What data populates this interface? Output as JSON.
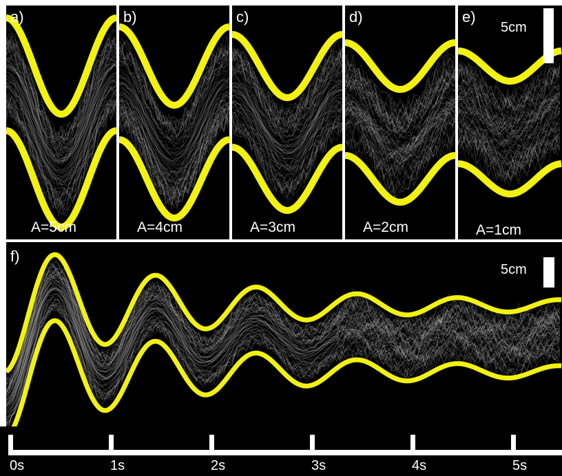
{
  "panels": [
    {
      "label": "a)",
      "amp_label": "A=5cm",
      "amplitude": 5
    },
    {
      "label": "b)",
      "amp_label": "A=4cm",
      "amplitude": 4
    },
    {
      "label": "c)",
      "amp_label": "A=3cm",
      "amplitude": 3
    },
    {
      "label": "d)",
      "amp_label": "A=2cm",
      "amplitude": 2
    },
    {
      "label": "e)",
      "amp_label": "A=1cm",
      "amplitude": 1
    }
  ],
  "scale_bar_top": "5cm",
  "panel_f": {
    "label": "f)",
    "scale_bar": "5cm"
  },
  "time_ticks": [
    "0s",
    "1s",
    "2s",
    "3s",
    "4s",
    "5s"
  ],
  "colors": {
    "envelope": "#f2f20e",
    "trace": "#ffffff",
    "background": "#000000"
  }
}
